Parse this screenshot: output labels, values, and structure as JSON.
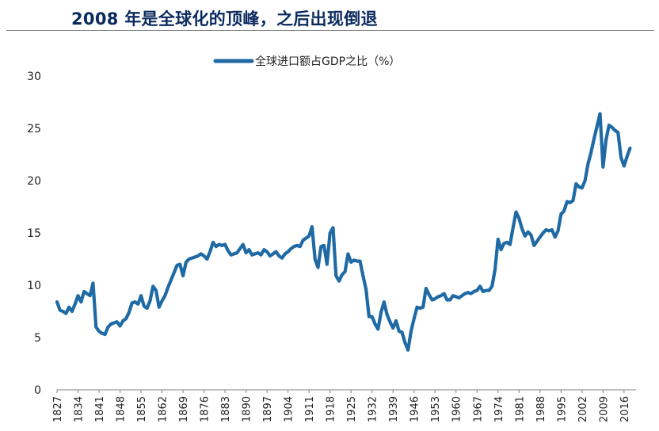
{
  "title": "2008 年是全球化的顶峰，之后出现倒退",
  "chart_data": {
    "type": "line",
    "title": "2008 年是全球化的顶峰，之后出现倒退",
    "xlabel": "",
    "ylabel": "",
    "xlim": [
      1827,
      2020
    ],
    "ylim": [
      0,
      30
    ],
    "yticks": [
      0,
      5,
      10,
      15,
      20,
      25,
      30
    ],
    "xticks": [
      1827,
      1834,
      1841,
      1848,
      1855,
      1862,
      1869,
      1876,
      1883,
      1890,
      1897,
      1904,
      1911,
      1918,
      1925,
      1932,
      1939,
      1946,
      1953,
      1960,
      1967,
      1974,
      1981,
      1988,
      1995,
      2002,
      2009,
      2016
    ],
    "legend": "top-center",
    "grid": false,
    "series": [
      {
        "name": "全球进口额占GDP之比（%）",
        "color": "#1f6aa5",
        "points": [
          [
            1827,
            8.4
          ],
          [
            1828,
            7.6
          ],
          [
            1829,
            7.5
          ],
          [
            1830,
            7.3
          ],
          [
            1831,
            7.9
          ],
          [
            1832,
            7.5
          ],
          [
            1833,
            8.2
          ],
          [
            1834,
            9.0
          ],
          [
            1835,
            8.4
          ],
          [
            1836,
            9.4
          ],
          [
            1837,
            9.2
          ],
          [
            1838,
            9.0
          ],
          [
            1839,
            10.2
          ],
          [
            1840,
            6.0
          ],
          [
            1841,
            5.6
          ],
          [
            1842,
            5.4
          ],
          [
            1843,
            5.3
          ],
          [
            1844,
            6.0
          ],
          [
            1845,
            6.3
          ],
          [
            1846,
            6.4
          ],
          [
            1847,
            6.5
          ],
          [
            1848,
            6.1
          ],
          [
            1849,
            6.6
          ],
          [
            1850,
            6.8
          ],
          [
            1851,
            7.4
          ],
          [
            1852,
            8.3
          ],
          [
            1853,
            8.4
          ],
          [
            1854,
            8.2
          ],
          [
            1855,
            9.0
          ],
          [
            1856,
            8.0
          ],
          [
            1857,
            7.8
          ],
          [
            1858,
            8.5
          ],
          [
            1859,
            9.9
          ],
          [
            1860,
            9.5
          ],
          [
            1861,
            7.9
          ],
          [
            1862,
            8.5
          ],
          [
            1863,
            9.0
          ],
          [
            1864,
            9.8
          ],
          [
            1865,
            10.5
          ],
          [
            1866,
            11.2
          ],
          [
            1867,
            11.9
          ],
          [
            1868,
            12.0
          ],
          [
            1869,
            10.9
          ],
          [
            1870,
            12.2
          ],
          [
            1871,
            12.5
          ],
          [
            1872,
            12.6
          ],
          [
            1873,
            12.7
          ],
          [
            1874,
            12.8
          ],
          [
            1875,
            13.0
          ],
          [
            1876,
            12.8
          ],
          [
            1877,
            12.5
          ],
          [
            1878,
            13.2
          ],
          [
            1879,
            14.1
          ],
          [
            1880,
            13.7
          ],
          [
            1881,
            13.9
          ],
          [
            1882,
            13.8
          ],
          [
            1883,
            13.9
          ],
          [
            1884,
            13.3
          ],
          [
            1885,
            12.9
          ],
          [
            1886,
            13.0
          ],
          [
            1887,
            13.1
          ],
          [
            1888,
            13.5
          ],
          [
            1889,
            13.9
          ],
          [
            1890,
            13.1
          ],
          [
            1891,
            13.4
          ],
          [
            1892,
            12.9
          ],
          [
            1893,
            13.0
          ],
          [
            1894,
            13.1
          ],
          [
            1895,
            12.9
          ],
          [
            1896,
            13.4
          ],
          [
            1897,
            13.2
          ],
          [
            1898,
            12.8
          ],
          [
            1899,
            13.0
          ],
          [
            1900,
            13.2
          ],
          [
            1901,
            12.8
          ],
          [
            1902,
            12.6
          ],
          [
            1903,
            13.0
          ],
          [
            1904,
            13.2
          ],
          [
            1905,
            13.5
          ],
          [
            1906,
            13.7
          ],
          [
            1907,
            13.8
          ],
          [
            1908,
            13.7
          ],
          [
            1909,
            14.3
          ],
          [
            1910,
            14.5
          ],
          [
            1911,
            14.7
          ],
          [
            1912,
            15.6
          ],
          [
            1913,
            12.5
          ],
          [
            1914,
            11.7
          ],
          [
            1915,
            13.7
          ],
          [
            1916,
            13.8
          ],
          [
            1917,
            12.0
          ],
          [
            1918,
            15.0
          ],
          [
            1919,
            15.5
          ],
          [
            1920,
            10.9
          ],
          [
            1921,
            10.4
          ],
          [
            1922,
            11.0
          ],
          [
            1923,
            11.3
          ],
          [
            1924,
            13.0
          ],
          [
            1925,
            12.2
          ],
          [
            1926,
            12.4
          ],
          [
            1927,
            12.3
          ],
          [
            1928,
            12.3
          ],
          [
            1929,
            10.9
          ],
          [
            1930,
            9.6
          ],
          [
            1931,
            7.0
          ],
          [
            1932,
            7.0
          ],
          [
            1933,
            6.3
          ],
          [
            1934,
            5.8
          ],
          [
            1935,
            7.4
          ],
          [
            1936,
            8.4
          ],
          [
            1937,
            7.2
          ],
          [
            1938,
            6.5
          ],
          [
            1939,
            5.9
          ],
          [
            1940,
            6.6
          ],
          [
            1941,
            5.6
          ],
          [
            1942,
            5.5
          ],
          [
            1943,
            4.5
          ],
          [
            1944,
            3.8
          ],
          [
            1945,
            5.6
          ],
          [
            1946,
            6.8
          ],
          [
            1947,
            7.9
          ],
          [
            1948,
            7.8
          ],
          [
            1949,
            7.9
          ],
          [
            1950,
            9.7
          ],
          [
            1951,
            9.1
          ],
          [
            1952,
            8.6
          ],
          [
            1953,
            8.7
          ],
          [
            1954,
            8.9
          ],
          [
            1955,
            9.0
          ],
          [
            1956,
            9.2
          ],
          [
            1957,
            8.6
          ],
          [
            1958,
            8.6
          ],
          [
            1959,
            9.0
          ],
          [
            1960,
            8.9
          ],
          [
            1961,
            8.8
          ],
          [
            1962,
            9.0
          ],
          [
            1963,
            9.2
          ],
          [
            1964,
            9.3
          ],
          [
            1965,
            9.2
          ],
          [
            1966,
            9.4
          ],
          [
            1967,
            9.5
          ],
          [
            1968,
            9.9
          ],
          [
            1969,
            9.4
          ],
          [
            1970,
            9.5
          ],
          [
            1971,
            9.5
          ],
          [
            1972,
            9.9
          ],
          [
            1973,
            11.5
          ],
          [
            1974,
            14.4
          ],
          [
            1975,
            13.4
          ],
          [
            1976,
            14.0
          ],
          [
            1977,
            14.1
          ],
          [
            1978,
            13.9
          ],
          [
            1979,
            15.5
          ],
          [
            1980,
            17.0
          ],
          [
            1981,
            16.4
          ],
          [
            1982,
            15.4
          ],
          [
            1983,
            14.7
          ],
          [
            1984,
            15.1
          ],
          [
            1985,
            14.8
          ],
          [
            1986,
            13.8
          ],
          [
            1987,
            14.2
          ],
          [
            1988,
            14.6
          ],
          [
            1989,
            15.0
          ],
          [
            1990,
            15.3
          ],
          [
            1991,
            15.2
          ],
          [
            1992,
            15.3
          ],
          [
            1993,
            14.6
          ],
          [
            1994,
            15.2
          ],
          [
            1995,
            16.8
          ],
          [
            1996,
            17.1
          ],
          [
            1997,
            18.0
          ],
          [
            1998,
            17.9
          ],
          [
            1999,
            18.1
          ],
          [
            2000,
            19.7
          ],
          [
            2001,
            19.4
          ],
          [
            2002,
            19.3
          ],
          [
            2003,
            20.0
          ],
          [
            2004,
            21.6
          ],
          [
            2005,
            22.7
          ],
          [
            2006,
            24.0
          ],
          [
            2007,
            25.2
          ],
          [
            2008,
            26.4
          ],
          [
            2009,
            21.3
          ],
          [
            2010,
            23.9
          ],
          [
            2011,
            25.3
          ],
          [
            2012,
            25.1
          ],
          [
            2013,
            24.8
          ],
          [
            2014,
            24.6
          ],
          [
            2015,
            22.2
          ],
          [
            2016,
            21.4
          ],
          [
            2017,
            22.3
          ],
          [
            2018,
            23.1
          ]
        ]
      }
    ]
  }
}
